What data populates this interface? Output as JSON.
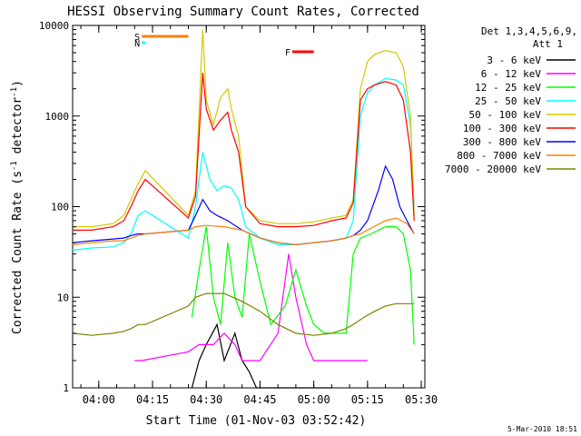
{
  "chart_data": {
    "type": "line",
    "title": "HESSI Observing Summary Count Rates, Corrected",
    "xlabel": "Start Time (01-Nov-03 03:52:42)",
    "ylabel_main": "Corrected Count Rate (s",
    "ylabel_sup1": "-1",
    "ylabel_mid": " detector",
    "ylabel_sup2": "-1",
    "ylabel_end": ")",
    "ylog": true,
    "ylim": [
      1,
      10000
    ],
    "xlim": [
      "03:52:42",
      "05:31:00"
    ],
    "x_ticks": [
      "04:00",
      "04:15",
      "04:30",
      "04:45",
      "05:00",
      "05:15",
      "05:30"
    ],
    "y_ticks": [
      "1",
      "10",
      "100",
      "1000",
      "10000"
    ],
    "legend_header_1": "Det 1,3,4,5,6,9,",
    "legend_header_2": "Att 1",
    "legend_position": "right",
    "footer_date": "5-Mar-2010 18:51",
    "flags": [
      {
        "label": "S",
        "color": "#ff7f00",
        "start": "04:12:00",
        "end": "04:25:00"
      },
      {
        "label": "N",
        "color": "#00ffff",
        "start": "04:12:00",
        "end": "04:13:00"
      },
      {
        "label": "F",
        "color": "#ff0000",
        "start": "04:54:00",
        "end": "05:00:00"
      }
    ],
    "series": [
      {
        "name": "3 - 6 keV",
        "color": "#000000",
        "points": [
          [
            "04:26",
            1
          ],
          [
            "04:28",
            2
          ],
          [
            "04:30",
            3
          ],
          [
            "04:33",
            5
          ],
          [
            "04:35",
            2
          ],
          [
            "04:38",
            4
          ],
          [
            "04:40",
            2
          ],
          [
            "04:42",
            1.5
          ],
          [
            "04:44",
            1
          ],
          [
            "04:50",
            1
          ],
          [
            "04:58",
            1
          ],
          [
            "05:00",
            1
          ],
          [
            "05:05",
            1
          ]
        ]
      },
      {
        "name": "6 - 12 keV",
        "color": "#ff00ff",
        "points": [
          [
            "04:10",
            2
          ],
          [
            "04:12",
            2
          ],
          [
            "04:25",
            2.5
          ],
          [
            "04:28",
            3
          ],
          [
            "04:32",
            3
          ],
          [
            "04:35",
            4
          ],
          [
            "04:38",
            3
          ],
          [
            "04:40",
            2
          ],
          [
            "04:45",
            2
          ],
          [
            "04:50",
            4
          ],
          [
            "04:53",
            30
          ],
          [
            "04:55",
            10
          ],
          [
            "04:58",
            3
          ],
          [
            "05:00",
            2
          ],
          [
            "05:05",
            2
          ],
          [
            "05:10",
            2
          ],
          [
            "05:15",
            2
          ]
        ]
      },
      {
        "name": "12 - 25 keV",
        "color": "#00ff00",
        "points": [
          [
            "04:26",
            6
          ],
          [
            "04:28",
            20
          ],
          [
            "04:30",
            60
          ],
          [
            "04:32",
            10
          ],
          [
            "04:34",
            5
          ],
          [
            "04:36",
            40
          ],
          [
            "04:38",
            10
          ],
          [
            "04:40",
            6
          ],
          [
            "04:42",
            50
          ],
          [
            "04:45",
            15
          ],
          [
            "04:48",
            5
          ],
          [
            "04:52",
            8
          ],
          [
            "04:55",
            20
          ],
          [
            "04:58",
            8
          ],
          [
            "05:00",
            5
          ],
          [
            "05:03",
            4
          ],
          [
            "05:06",
            4
          ],
          [
            "05:09",
            4
          ],
          [
            "05:11",
            30
          ],
          [
            "05:13",
            45
          ],
          [
            "05:16",
            50
          ],
          [
            "05:18",
            55
          ],
          [
            "05:20",
            60
          ],
          [
            "05:23",
            60
          ],
          [
            "05:25",
            50
          ],
          [
            "05:27",
            20
          ],
          [
            "05:28",
            3
          ]
        ]
      },
      {
        "name": "25 - 50 keV",
        "color": "#00ffff",
        "points": [
          [
            "03:52:42",
            33
          ],
          [
            "03:58",
            35
          ],
          [
            "04:04",
            36
          ],
          [
            "04:07",
            40
          ],
          [
            "04:09",
            50
          ],
          [
            "04:11",
            80
          ],
          [
            "04:13",
            90
          ],
          [
            "04:25",
            45
          ],
          [
            "04:27",
            100
          ],
          [
            "04:29",
            400
          ],
          [
            "04:31",
            200
          ],
          [
            "04:33",
            150
          ],
          [
            "04:35",
            170
          ],
          [
            "04:37",
            160
          ],
          [
            "04:39",
            120
          ],
          [
            "04:41",
            60
          ],
          [
            "04:45",
            45
          ],
          [
            "04:50",
            38
          ],
          [
            "04:55",
            38
          ],
          [
            "05:00",
            40
          ],
          [
            "05:05",
            42
          ],
          [
            "05:09",
            45
          ],
          [
            "05:11",
            70
          ],
          [
            "05:13",
            1000
          ],
          [
            "05:15",
            1800
          ],
          [
            "05:17",
            2200
          ],
          [
            "05:20",
            2600
          ],
          [
            "05:23",
            2500
          ],
          [
            "05:25",
            2200
          ],
          [
            "05:27",
            800
          ],
          [
            "05:28",
            100
          ]
        ]
      },
      {
        "name": "50 - 100 keV",
        "color": "#d4c800",
        "points": [
          [
            "03:52:42",
            60
          ],
          [
            "03:58",
            60
          ],
          [
            "04:04",
            65
          ],
          [
            "04:07",
            80
          ],
          [
            "04:09",
            120
          ],
          [
            "04:11",
            180
          ],
          [
            "04:13",
            250
          ],
          [
            "04:25",
            80
          ],
          [
            "04:27",
            150
          ],
          [
            "04:29",
            9000
          ],
          [
            "04:30",
            1500
          ],
          [
            "04:32",
            800
          ],
          [
            "04:34",
            1600
          ],
          [
            "04:36",
            2000
          ],
          [
            "04:37",
            1200
          ],
          [
            "04:39",
            600
          ],
          [
            "04:41",
            100
          ],
          [
            "04:45",
            70
          ],
          [
            "04:50",
            65
          ],
          [
            "04:55",
            65
          ],
          [
            "05:00",
            68
          ],
          [
            "05:05",
            75
          ],
          [
            "05:09",
            80
          ],
          [
            "05:11",
            120
          ],
          [
            "05:13",
            2000
          ],
          [
            "05:15",
            4000
          ],
          [
            "05:17",
            4800
          ],
          [
            "05:20",
            5300
          ],
          [
            "05:23",
            5000
          ],
          [
            "05:25",
            3500
          ],
          [
            "05:27",
            1000
          ],
          [
            "05:28",
            80
          ]
        ]
      },
      {
        "name": "100 - 300 keV",
        "color": "#ff0000",
        "points": [
          [
            "03:52:42",
            55
          ],
          [
            "03:58",
            55
          ],
          [
            "04:04",
            60
          ],
          [
            "04:07",
            70
          ],
          [
            "04:09",
            100
          ],
          [
            "04:11",
            150
          ],
          [
            "04:13",
            200
          ],
          [
            "04:25",
            75
          ],
          [
            "04:27",
            130
          ],
          [
            "04:29",
            3000
          ],
          [
            "04:30",
            1200
          ],
          [
            "04:32",
            700
          ],
          [
            "04:34",
            900
          ],
          [
            "04:36",
            1100
          ],
          [
            "04:37",
            700
          ],
          [
            "04:39",
            400
          ],
          [
            "04:41",
            100
          ],
          [
            "04:45",
            65
          ],
          [
            "04:50",
            60
          ],
          [
            "04:55",
            60
          ],
          [
            "05:00",
            62
          ],
          [
            "05:05",
            70
          ],
          [
            "05:09",
            75
          ],
          [
            "05:11",
            110
          ],
          [
            "05:13",
            1500
          ],
          [
            "05:15",
            2000
          ],
          [
            "05:17",
            2200
          ],
          [
            "05:20",
            2400
          ],
          [
            "05:23",
            2200
          ],
          [
            "05:25",
            1500
          ],
          [
            "05:27",
            400
          ],
          [
            "05:28",
            70
          ]
        ]
      },
      {
        "name": "300 - 800 keV",
        "color": "#0000ff",
        "points": [
          [
            "03:52:42",
            40
          ],
          [
            "03:58",
            42
          ],
          [
            "04:04",
            44
          ],
          [
            "04:07",
            45
          ],
          [
            "04:09",
            48
          ],
          [
            "04:11",
            50
          ],
          [
            "04:13",
            50
          ],
          [
            "04:25",
            55
          ],
          [
            "04:27",
            80
          ],
          [
            "04:29",
            120
          ],
          [
            "04:31",
            90
          ],
          [
            "04:33",
            80
          ],
          [
            "04:36",
            70
          ],
          [
            "04:40",
            55
          ],
          [
            "04:45",
            45
          ],
          [
            "04:50",
            40
          ],
          [
            "04:55",
            38
          ],
          [
            "05:00",
            40
          ],
          [
            "05:05",
            42
          ],
          [
            "05:09",
            45
          ],
          [
            "05:11",
            48
          ],
          [
            "05:13",
            55
          ],
          [
            "05:15",
            70
          ],
          [
            "05:18",
            150
          ],
          [
            "05:20",
            280
          ],
          [
            "05:22",
            200
          ],
          [
            "05:24",
            100
          ],
          [
            "05:26",
            70
          ],
          [
            "05:28",
            50
          ]
        ]
      },
      {
        "name": "800 - 7000 keV",
        "color": "#ff7f00",
        "points": [
          [
            "03:52:42",
            38
          ],
          [
            "03:58",
            40
          ],
          [
            "04:04",
            42
          ],
          [
            "04:07",
            42
          ],
          [
            "04:09",
            45
          ],
          [
            "04:11",
            48
          ],
          [
            "04:13",
            50
          ],
          [
            "04:25",
            55
          ],
          [
            "04:27",
            60
          ],
          [
            "04:30",
            62
          ],
          [
            "04:35",
            60
          ],
          [
            "04:40",
            55
          ],
          [
            "04:45",
            45
          ],
          [
            "04:50",
            40
          ],
          [
            "04:55",
            38
          ],
          [
            "05:00",
            40
          ],
          [
            "05:05",
            42
          ],
          [
            "05:09",
            45
          ],
          [
            "05:11",
            48
          ],
          [
            "05:13",
            50
          ],
          [
            "05:16",
            58
          ],
          [
            "05:20",
            70
          ],
          [
            "05:23",
            75
          ],
          [
            "05:26",
            65
          ],
          [
            "05:28",
            50
          ]
        ]
      },
      {
        "name": "7000 - 20000 keV",
        "color": "#808000",
        "points": [
          [
            "03:52:42",
            4
          ],
          [
            "03:58",
            3.8
          ],
          [
            "04:04",
            4
          ],
          [
            "04:07",
            4.2
          ],
          [
            "04:09",
            4.5
          ],
          [
            "04:11",
            5
          ],
          [
            "04:13",
            5
          ],
          [
            "04:25",
            8
          ],
          [
            "04:27",
            10
          ],
          [
            "04:30",
            11
          ],
          [
            "04:35",
            11
          ],
          [
            "04:40",
            9
          ],
          [
            "04:45",
            7
          ],
          [
            "04:50",
            5
          ],
          [
            "04:55",
            4
          ],
          [
            "05:00",
            3.8
          ],
          [
            "05:05",
            4
          ],
          [
            "05:09",
            4.5
          ],
          [
            "05:11",
            5
          ],
          [
            "05:14",
            6
          ],
          [
            "05:17",
            7
          ],
          [
            "05:20",
            8
          ],
          [
            "05:23",
            8.5
          ],
          [
            "05:28",
            8.5
          ]
        ]
      }
    ]
  }
}
